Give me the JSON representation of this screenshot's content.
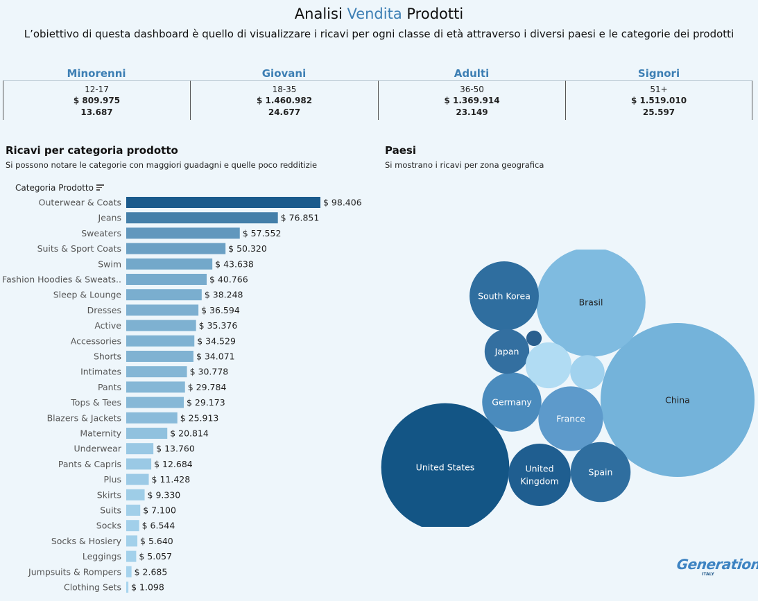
{
  "header": {
    "title_before": "Analisi ",
    "title_accent": "Vendita",
    "title_after": " Prodotti",
    "subtitle": "L’obiettivo di questa dashboard è quello di visualizzare i ricavi per ogni classe di età attraverso i diversi paesi e le categorie dei prodotti"
  },
  "kpis": [
    {
      "name": "Minorenni",
      "range": "12-17",
      "revenue": "$ 809.975",
      "count": "13.687"
    },
    {
      "name": "Giovani",
      "range": "18-35",
      "revenue": "$ 1.460.982",
      "count": "24.677"
    },
    {
      "name": "Adulti",
      "range": "36-50",
      "revenue": "$ 1.369.914",
      "count": "23.149"
    },
    {
      "name": "Signori",
      "range": "51+",
      "revenue": "$ 1.519.010",
      "count": "25.597"
    }
  ],
  "categories_section": {
    "title": "Ricavi per categoria prodotto",
    "subtitle": "Si possono notare le categorie con maggiori guadagni e quelle poco redditizie",
    "column_header": "Categoria Prodotto"
  },
  "countries_section": {
    "title": "Paesi",
    "subtitle": "Si mostrano i ricavi per zona geografica"
  },
  "logo": {
    "word": "Generation",
    "country": "ITALY"
  },
  "colors": {
    "accent": "#3d7fb4",
    "bar_dark": "#1a5a8c",
    "bar_light": "#a9d6ef",
    "background": "#eef6fb"
  },
  "chart_data": [
    {
      "type": "bar",
      "orientation": "horizontal",
      "value_prefix": "$ ",
      "categories": [
        "Outerwear & Coats",
        "Jeans",
        "Sweaters",
        "Suits & Sport Coats",
        "Swim",
        "Fashion Hoodies & Sweats..",
        "Sleep & Lounge",
        "Dresses",
        "Active",
        "Accessories",
        "Shorts",
        "Intimates",
        "Pants",
        "Tops & Tees",
        "Blazers & Jackets",
        "Maternity",
        "Underwear",
        "Pants & Capris",
        "Plus",
        "Skirts",
        "Suits",
        "Socks",
        "Socks & Hosiery",
        "Leggings",
        "Jumpsuits & Rompers",
        "Clothing Sets"
      ],
      "values": [
        98406,
        76851,
        57552,
        50320,
        43638,
        40766,
        38248,
        36594,
        35376,
        34529,
        34071,
        30778,
        29784,
        29173,
        25913,
        20814,
        13760,
        12684,
        11428,
        9330,
        7100,
        6544,
        5640,
        5057,
        2685,
        1098
      ],
      "value_labels": [
        "$ 98.406",
        "$ 76.851",
        "$ 57.552",
        "$ 50.320",
        "$ 43.638",
        "$ 40.766",
        "$ 38.248",
        "$ 36.594",
        "$ 35.376",
        "$ 34.529",
        "$ 34.071",
        "$ 30.778",
        "$ 29.784",
        "$ 29.173",
        "$ 25.913",
        "$ 20.814",
        "$ 13.760",
        "$ 12.684",
        "$ 11.428",
        "$ 9.330",
        "$ 7.100",
        "$ 6.544",
        "$ 5.640",
        "$ 5.057",
        "$ 2.685",
        "$ 1.098"
      ]
    },
    {
      "type": "bubble",
      "series": [
        {
          "label": "China",
          "relative_size": 1.0,
          "color": "#74b3da",
          "text_color": "#222"
        },
        {
          "label": "United States",
          "relative_size": 0.832,
          "color": "#135585",
          "text_color": "#ffffff"
        },
        {
          "label": "Brasil",
          "relative_size": 0.71,
          "color": "#7fbbe0",
          "text_color": "#222"
        },
        {
          "label": "South Korea",
          "relative_size": 0.45,
          "color": "#2f6e9f",
          "text_color": "#ffffff"
        },
        {
          "label": "Germany",
          "relative_size": 0.385,
          "color": "#4a8bbd",
          "text_color": "#ffffff"
        },
        {
          "label": "France",
          "relative_size": 0.42,
          "color": "#5d9acb",
          "text_color": "#ffffff"
        },
        {
          "label": "United Kingdom",
          "relative_size": 0.405,
          "color": "#1f5e90",
          "text_color": "#ffffff"
        },
        {
          "label": "Spain",
          "relative_size": 0.39,
          "color": "#2f6e9f",
          "text_color": "#ffffff"
        },
        {
          "label": "Japan",
          "relative_size": 0.29,
          "color": "#336fa0",
          "text_color": "#ffffff"
        },
        {
          "label": "",
          "relative_size": 0.298,
          "color": "#b1dcf3",
          "text_color": "#222"
        },
        {
          "label": "",
          "relative_size": 0.223,
          "color": "#a1d2ee",
          "text_color": "#222"
        },
        {
          "label": "",
          "relative_size": 0.1,
          "color": "#2a5f8e",
          "text_color": "#222"
        }
      ]
    }
  ]
}
